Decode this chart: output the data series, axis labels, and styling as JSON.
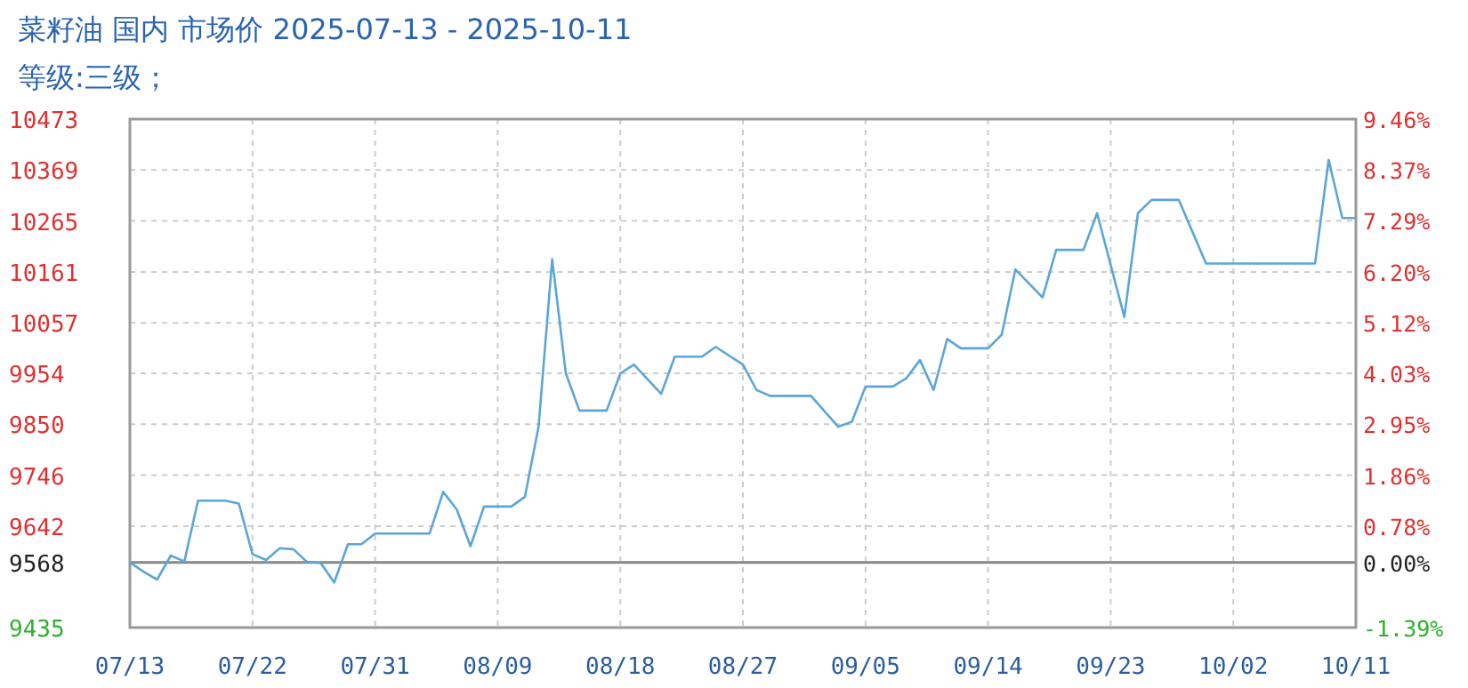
{
  "chart_data": {
    "type": "line",
    "title": "菜籽油 国内 市场价 2025-07-13 - 2025-10-11",
    "subtitle": "等级:三级；",
    "x": [
      "2025-07-13",
      "2025-07-14",
      "2025-07-15",
      "2025-07-16",
      "2025-07-17",
      "2025-07-18",
      "2025-07-20",
      "2025-07-21",
      "2025-07-22",
      "2025-07-23",
      "2025-07-24",
      "2025-07-25",
      "2025-07-26",
      "2025-07-27",
      "2025-07-28",
      "2025-07-29",
      "2025-07-30",
      "2025-07-31",
      "2025-08-04",
      "2025-08-05",
      "2025-08-06",
      "2025-08-07",
      "2025-08-08",
      "2025-08-10",
      "2025-08-11",
      "2025-08-12",
      "2025-08-13",
      "2025-08-14",
      "2025-08-15",
      "2025-08-17",
      "2025-08-18",
      "2025-08-19",
      "2025-08-21",
      "2025-08-22",
      "2025-08-24",
      "2025-08-25",
      "2025-08-27",
      "2025-08-28",
      "2025-08-29",
      "2025-09-01",
      "2025-09-03",
      "2025-09-04",
      "2025-09-05",
      "2025-09-07",
      "2025-09-08",
      "2025-09-09",
      "2025-09-10",
      "2025-09-11",
      "2025-09-12",
      "2025-09-14",
      "2025-09-15",
      "2025-09-16",
      "2025-09-18",
      "2025-09-19",
      "2025-09-21",
      "2025-09-22",
      "2025-09-24",
      "2025-09-25",
      "2025-09-26",
      "2025-09-28",
      "2025-09-30",
      "2025-10-08",
      "2025-10-09",
      "2025-10-10",
      "2025-10-11"
    ],
    "series": [
      {
        "color": "#5aa6d8",
        "values": [
          9568,
          9549,
          9533,
          9582,
          9570,
          9694,
          9694,
          9688,
          9585,
          9573,
          9597,
          9595,
          9569,
          9567,
          9527,
          9605,
          9605,
          9627,
          9627,
          9712,
          9676,
          9601,
          9682,
          9682,
          9702,
          9845,
          10187,
          9954,
          9878,
          9878,
          9954,
          9972,
          9912,
          9988,
          9988,
          10008,
          9972,
          9920,
          9908,
          9908,
          9845,
          9855,
          9927,
          9927,
          9944,
          9981,
          9920,
          10024,
          10005,
          10005,
          10033,
          10166,
          10109,
          10206,
          10206,
          10281,
          10069,
          10281,
          10308,
          10308,
          10178,
          10178,
          10390,
          10271,
          10271
        ]
      }
    ],
    "xlim": [
      "2025-07-13",
      "2025-10-11"
    ],
    "xticks": [
      {
        "value": "2025-07-13",
        "label": "07/13"
      },
      {
        "value": "2025-07-22",
        "label": "07/22"
      },
      {
        "value": "2025-07-31",
        "label": "07/31"
      },
      {
        "value": "2025-08-09",
        "label": "08/09"
      },
      {
        "value": "2025-08-18",
        "label": "08/18"
      },
      {
        "value": "2025-08-27",
        "label": "08/27"
      },
      {
        "value": "2025-09-05",
        "label": "09/05"
      },
      {
        "value": "2025-09-14",
        "label": "09/14"
      },
      {
        "value": "2025-09-23",
        "label": "09/23"
      },
      {
        "value": "2025-10-02",
        "label": "10/02"
      },
      {
        "value": "2025-10-11",
        "label": "10/11"
      }
    ],
    "ylim": [
      9435,
      10473
    ],
    "yticks": [
      9435,
      9568,
      9642,
      9746,
      9850,
      9954,
      10057,
      10161,
      10265,
      10369,
      10473
    ],
    "y2lim": [
      -1.39,
      9.46
    ],
    "y2ticks": [
      {
        "value": -1.39,
        "label": "-1.39%"
      },
      {
        "value": 0,
        "label": "0.00%"
      },
      {
        "value": 0.78,
        "label": "0.78%"
      },
      {
        "value": 1.86,
        "label": "1.86%"
      },
      {
        "value": 2.95,
        "label": "2.95%"
      },
      {
        "value": 4.03,
        "label": "4.03%"
      },
      {
        "value": 5.12,
        "label": "5.12%"
      },
      {
        "value": 6.2,
        "label": "6.20%"
      },
      {
        "value": 7.29,
        "label": "7.29%"
      },
      {
        "value": 8.37,
        "label": "8.37%"
      },
      {
        "value": 9.46,
        "label": "9.46%"
      }
    ],
    "ref_lines": [
      {
        "axis": "y",
        "value": 9568,
        "color": "#888888"
      }
    ],
    "grid": true,
    "marker": "none",
    "line_style": "solid"
  }
}
